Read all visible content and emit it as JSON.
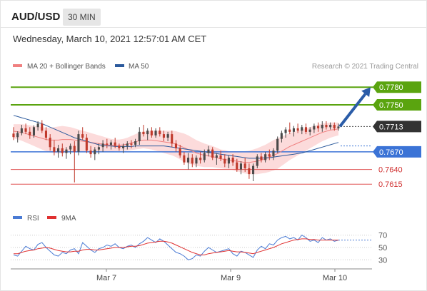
{
  "header": {
    "symbol": "AUD/USD",
    "timeframe": "30 MIN",
    "datetime": "Wednesday, March 10, 2021 12:57:01 AM CET"
  },
  "legend": {
    "items": [
      {
        "label": "MA 20 + Bollinger Bands",
        "color": "#f08080"
      },
      {
        "label": "MA 50",
        "color": "#2c5a9c"
      }
    ],
    "credit": "Research © 2021 Trading Central"
  },
  "colors": {
    "up_candle": "#4a4a4a",
    "down_candle": "#c0392b",
    "bollinger_fill": "#fbd5d5",
    "ma20": "#f08080",
    "ma50": "#2c5a9c",
    "target_lines": "#5aa40f",
    "pivot_line": "#3b73d6",
    "support_lines": "#e05050",
    "arrow": "#2a5ca8",
    "rsi": "#4a7bd4",
    "rsi_ma": "#e03030"
  },
  "chart_data": [
    {
      "type": "candlestick",
      "title": "",
      "xlabel": "",
      "ylabel": "",
      "ylim": [
        0.7605,
        0.779
      ],
      "x_ticks": [
        "Mar 7",
        "Mar 9",
        "Mar 10"
      ],
      "levels": [
        {
          "value": 0.778,
          "label": "0.7780",
          "style": "target"
        },
        {
          "value": 0.775,
          "label": "0.7750",
          "style": "target"
        },
        {
          "value": 0.7713,
          "label": "0.7713",
          "style": "last"
        },
        {
          "value": 0.767,
          "label": "0.7670",
          "style": "pivot"
        },
        {
          "value": 0.764,
          "label": "0.7640",
          "style": "support"
        },
        {
          "value": 0.7615,
          "label": "0.7615",
          "style": "support"
        }
      ],
      "series": [
        {
          "name": "MA 20 + Bollinger Bands"
        },
        {
          "name": "MA 50"
        }
      ],
      "candles": [
        [
          0.7701,
          0.7712,
          0.769,
          0.7695
        ],
        [
          0.7695,
          0.7705,
          0.7686,
          0.7702
        ],
        [
          0.7702,
          0.7716,
          0.7698,
          0.771
        ],
        [
          0.771,
          0.7718,
          0.77,
          0.7704
        ],
        [
          0.7704,
          0.7712,
          0.7692,
          0.7698
        ],
        [
          0.7698,
          0.7715,
          0.7694,
          0.7712
        ],
        [
          0.7712,
          0.7722,
          0.7706,
          0.7718
        ],
        [
          0.7718,
          0.7724,
          0.7702,
          0.7706
        ],
        [
          0.7706,
          0.7712,
          0.769,
          0.7694
        ],
        [
          0.7694,
          0.77,
          0.7672,
          0.7678
        ],
        [
          0.7678,
          0.769,
          0.7664,
          0.767
        ],
        [
          0.767,
          0.7682,
          0.766,
          0.7676
        ],
        [
          0.7676,
          0.7684,
          0.7662,
          0.7668
        ],
        [
          0.7668,
          0.7678,
          0.7658,
          0.7674
        ],
        [
          0.7674,
          0.7684,
          0.7666,
          0.768
        ],
        [
          0.768,
          0.7688,
          0.7618,
          0.767
        ],
        [
          0.767,
          0.7706,
          0.7664,
          0.77
        ],
        [
          0.77,
          0.7712,
          0.769,
          0.7694
        ],
        [
          0.7694,
          0.77,
          0.7668,
          0.7672
        ],
        [
          0.7672,
          0.768,
          0.766,
          0.7666
        ],
        [
          0.7666,
          0.7678,
          0.7656,
          0.7674
        ],
        [
          0.7674,
          0.7684,
          0.7666,
          0.7678
        ],
        [
          0.7678,
          0.769,
          0.767,
          0.7684
        ],
        [
          0.7684,
          0.7692,
          0.7676,
          0.7682
        ],
        [
          0.7682,
          0.769,
          0.7674,
          0.7686
        ],
        [
          0.7686,
          0.7694,
          0.7676,
          0.768
        ],
        [
          0.768,
          0.7684,
          0.7672,
          0.7676
        ],
        [
          0.7676,
          0.7684,
          0.7668,
          0.768
        ],
        [
          0.768,
          0.7688,
          0.7674,
          0.7684
        ],
        [
          0.7684,
          0.769,
          0.7676,
          0.7682
        ],
        [
          0.7682,
          0.7692,
          0.7678,
          0.7688
        ],
        [
          0.7688,
          0.7712,
          0.7682,
          0.7704
        ],
        [
          0.7704,
          0.7716,
          0.7696,
          0.77
        ],
        [
          0.77,
          0.771,
          0.769,
          0.7706
        ],
        [
          0.7706,
          0.7712,
          0.7694,
          0.7698
        ],
        [
          0.7698,
          0.771,
          0.7694,
          0.7706
        ],
        [
          0.7706,
          0.7712,
          0.7696,
          0.77
        ],
        [
          0.77,
          0.7706,
          0.7688,
          0.7694
        ],
        [
          0.7694,
          0.7704,
          0.7688,
          0.77
        ],
        [
          0.77,
          0.7706,
          0.7678,
          0.7684
        ],
        [
          0.7684,
          0.769,
          0.767,
          0.7676
        ],
        [
          0.7676,
          0.7682,
          0.766,
          0.7664
        ],
        [
          0.7664,
          0.767,
          0.7648,
          0.7652
        ],
        [
          0.7652,
          0.7668,
          0.764,
          0.766
        ],
        [
          0.766,
          0.7666,
          0.7644,
          0.765
        ],
        [
          0.765,
          0.7664,
          0.7644,
          0.766
        ],
        [
          0.766,
          0.767,
          0.765,
          0.7656
        ],
        [
          0.7656,
          0.7674,
          0.7652,
          0.7668
        ],
        [
          0.7668,
          0.768,
          0.7662,
          0.7674
        ],
        [
          0.7674,
          0.7678,
          0.7656,
          0.766
        ],
        [
          0.766,
          0.7668,
          0.7648,
          0.7664
        ],
        [
          0.7664,
          0.7672,
          0.7654,
          0.7658
        ],
        [
          0.7658,
          0.7666,
          0.7644,
          0.765
        ],
        [
          0.765,
          0.7664,
          0.7642,
          0.766
        ],
        [
          0.766,
          0.7666,
          0.7646,
          0.7652
        ],
        [
          0.7652,
          0.7658,
          0.7636,
          0.764
        ],
        [
          0.764,
          0.7654,
          0.7632,
          0.765
        ],
        [
          0.765,
          0.766,
          0.7636,
          0.7642
        ],
        [
          0.7642,
          0.765,
          0.7624,
          0.7632
        ],
        [
          0.7632,
          0.765,
          0.762,
          0.7646
        ],
        [
          0.7646,
          0.7666,
          0.7642,
          0.7662
        ],
        [
          0.7662,
          0.7668,
          0.7652,
          0.7656
        ],
        [
          0.7656,
          0.767,
          0.7652,
          0.7666
        ],
        [
          0.7666,
          0.7674,
          0.7656,
          0.7662
        ],
        [
          0.7662,
          0.7676,
          0.7656,
          0.7672
        ],
        [
          0.7672,
          0.7696,
          0.7668,
          0.7692
        ],
        [
          0.7692,
          0.7706,
          0.7686,
          0.7702
        ],
        [
          0.7702,
          0.7712,
          0.7694,
          0.7708
        ],
        [
          0.7708,
          0.772,
          0.77,
          0.7704
        ],
        [
          0.7704,
          0.7714,
          0.7696,
          0.771
        ],
        [
          0.771,
          0.7718,
          0.7702,
          0.7706
        ],
        [
          0.7706,
          0.7716,
          0.77,
          0.7712
        ],
        [
          0.7712,
          0.7718,
          0.77,
          0.7704
        ],
        [
          0.7704,
          0.7712,
          0.7698,
          0.7708
        ],
        [
          0.7708,
          0.7718,
          0.7702,
          0.7714
        ],
        [
          0.7714,
          0.772,
          0.7704,
          0.771
        ],
        [
          0.771,
          0.7722,
          0.7704,
          0.7716
        ],
        [
          0.7716,
          0.7722,
          0.7708,
          0.7712
        ],
        [
          0.7712,
          0.772,
          0.7708,
          0.7716
        ],
        [
          0.7716,
          0.772,
          0.7706,
          0.771
        ],
        [
          0.771,
          0.7718,
          0.7706,
          0.7713
        ]
      ],
      "ma20": [
        0.7705,
        0.7704,
        0.7703,
        0.7701,
        0.7699,
        0.7697,
        0.7695,
        0.7693,
        0.7691,
        0.769,
        0.769,
        0.769,
        0.7691,
        0.7691,
        0.7691,
        0.769,
        0.7689,
        0.7688,
        0.7687,
        0.7686,
        0.7685,
        0.7684,
        0.7683,
        0.7682,
        0.7681,
        0.7681,
        0.7681,
        0.7682,
        0.7683,
        0.7685,
        0.7687,
        0.7689,
        0.769,
        0.769,
        0.769,
        0.7689,
        0.7688,
        0.7687,
        0.7686,
        0.7685,
        0.7683,
        0.768,
        0.7677,
        0.7674,
        0.7671,
        0.7668,
        0.7666,
        0.7664,
        0.7663,
        0.7662,
        0.766,
        0.7658,
        0.7657,
        0.7656,
        0.7655,
        0.7654,
        0.7653,
        0.7652,
        0.7652,
        0.7653,
        0.7654,
        0.7656,
        0.7658,
        0.7661,
        0.7664,
        0.7667,
        0.7671,
        0.7675,
        0.7679,
        0.7682,
        0.7685,
        0.7688,
        0.7691,
        0.7694,
        0.7697,
        0.77,
        0.7703,
        0.7705,
        0.7707,
        0.7708,
        0.7709
      ],
      "bb_width": [
        0.0012,
        0.0013,
        0.0014,
        0.0015,
        0.0016,
        0.0017,
        0.0018,
        0.0019,
        0.002,
        0.0021,
        0.0022,
        0.0023,
        0.0023,
        0.0022,
        0.0021,
        0.002,
        0.0019,
        0.0018,
        0.0017,
        0.0016,
        0.0015,
        0.0014,
        0.0013,
        0.0012,
        0.0011,
        0.001,
        0.001,
        0.001,
        0.0011,
        0.0012,
        0.0013,
        0.0014,
        0.0014,
        0.0015,
        0.0016,
        0.0017,
        0.0018,
        0.0019,
        0.002,
        0.0021,
        0.0022,
        0.0023,
        0.0024,
        0.0024,
        0.0023,
        0.0022,
        0.0021,
        0.002,
        0.0019,
        0.0018,
        0.0017,
        0.0016,
        0.0016,
        0.0015,
        0.0016,
        0.0017,
        0.0018,
        0.0019,
        0.002,
        0.0021,
        0.0022,
        0.0023,
        0.0024,
        0.0025,
        0.0026,
        0.0026,
        0.0025,
        0.0024,
        0.0023,
        0.0022,
        0.0021,
        0.002,
        0.0019,
        0.0018,
        0.0017,
        0.0016,
        0.0015,
        0.0014,
        0.0013,
        0.0012,
        0.0011
      ],
      "ma50": [
        0.7732,
        0.773,
        0.7728,
        0.7726,
        0.7724,
        0.7722,
        0.772,
        0.7718,
        0.7715,
        0.7712,
        0.7709,
        0.7706,
        0.7703,
        0.77,
        0.7697,
        0.7694,
        0.7692,
        0.769,
        0.7688,
        0.7686,
        0.7684,
        0.7682,
        0.7681,
        0.768,
        0.768,
        0.7679,
        0.7679,
        0.7679,
        0.7679,
        0.7679,
        0.768,
        0.768,
        0.768,
        0.768,
        0.768,
        0.768,
        0.768,
        0.768,
        0.7679,
        0.7678,
        0.7677,
        0.7676,
        0.7675,
        0.7674,
        0.7673,
        0.7672,
        0.7671,
        0.767,
        0.7669,
        0.7668,
        0.7667,
        0.7666,
        0.7665,
        0.7664,
        0.7663,
        0.7662,
        0.7661,
        0.766,
        0.7659,
        0.7659,
        0.7659,
        0.7659,
        0.766,
        0.766,
        0.7661,
        0.7662,
        0.7663,
        0.7664,
        0.7665,
        0.7666,
        0.7667,
        0.7668,
        0.767,
        0.7672,
        0.7674,
        0.7676,
        0.7678,
        0.768,
        0.7682,
        0.7684,
        0.7686
      ],
      "forecast_arrow": {
        "from": 0.7713,
        "to": 0.778
      }
    },
    {
      "type": "line",
      "title": "",
      "xlabel": "",
      "ylabel": "",
      "ylim": [
        20,
        80
      ],
      "y_ticks": [
        "70",
        "50",
        "30"
      ],
      "series": [
        {
          "name": "RSI",
          "values": [
            38,
            36,
            44,
            52,
            48,
            46,
            55,
            58,
            50,
            44,
            38,
            36,
            42,
            40,
            46,
            48,
            40,
            58,
            52,
            46,
            42,
            48,
            50,
            54,
            52,
            56,
            50,
            48,
            52,
            54,
            50,
            56,
            60,
            66,
            62,
            58,
            64,
            60,
            54,
            48,
            42,
            40,
            36,
            30,
            32,
            38,
            36,
            44,
            50,
            46,
            42,
            44,
            46,
            48,
            40,
            36,
            44,
            42,
            38,
            34,
            46,
            52,
            48,
            56,
            54,
            62,
            66,
            68,
            64,
            66,
            62,
            70,
            66,
            60,
            62,
            58,
            66,
            62,
            64,
            60,
            62
          ]
        },
        {
          "name": "9MA",
          "values": [
            40,
            40,
            42,
            44,
            45,
            46,
            48,
            49,
            50,
            49,
            47,
            45,
            44,
            43,
            43,
            44,
            44,
            46,
            47,
            47,
            46,
            46,
            47,
            48,
            49,
            50,
            50,
            50,
            51,
            52,
            52,
            53,
            55,
            57,
            58,
            59,
            60,
            60,
            59,
            57,
            54,
            51,
            48,
            45,
            42,
            40,
            38,
            38,
            40,
            41,
            42,
            43,
            44,
            45,
            44,
            43,
            43,
            42,
            41,
            40,
            42,
            44,
            46,
            48,
            50,
            53,
            56,
            58,
            60,
            62,
            63,
            64,
            64,
            63,
            63,
            62,
            62,
            62,
            62,
            62,
            62
          ]
        }
      ]
    }
  ]
}
